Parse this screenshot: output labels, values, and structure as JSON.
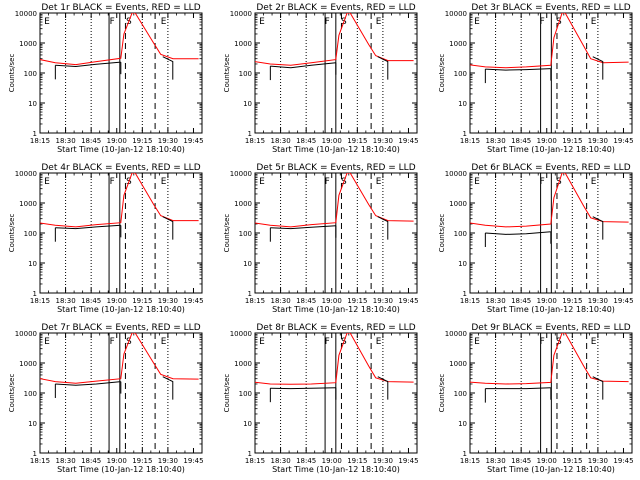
{
  "figure": {
    "background": "#ffffff",
    "axis_color": "#000000",
    "red_color": "#ff0000",
    "black_color": "#000000"
  },
  "chart_data": [
    {
      "type": "line",
      "title": "Det 1r BLACK = Events, RED = LLD",
      "xlabel": "Start Time (10-Jan-12 18:10:40)",
      "ylabel": "Counts/sec",
      "xlim": [
        18.25,
        19.8333
      ],
      "ylim": [
        1,
        10000
      ],
      "yscale": "log",
      "xticks": [
        "18:15",
        "18:30",
        "18:45",
        "19:00",
        "19:15",
        "19:30",
        "19:45"
      ],
      "yticks": [
        "1",
        "10",
        "100",
        "1000",
        "10000"
      ],
      "region_labels": [
        "E",
        "F",
        "S",
        "E"
      ],
      "series": [
        {
          "name": "RED = LLD",
          "color": "#ff0000",
          "x": [
            18.19,
            18.4,
            18.6,
            18.8,
            19.04,
            19.07,
            19.15,
            19.18,
            19.36,
            19.43,
            19.55,
            19.8
          ],
          "y": [
            310,
            220,
            190,
            240,
            310,
            2000,
            10000,
            10000,
            1000,
            420,
            300,
            300
          ]
        },
        {
          "name": "BLACK = Events",
          "color": "#000000",
          "x": [
            18.4,
            18.6,
            18.8,
            19.04
          ],
          "y": [
            180,
            165,
            195,
            230
          ]
        }
      ]
    },
    {
      "type": "line",
      "title": "Det 2r BLACK = Events, RED = LLD",
      "xlabel": "Start Time (10-Jan-12 18:10:40)",
      "ylabel": "Counts/sec",
      "xlim": [
        18.25,
        19.8333
      ],
      "ylim": [
        1,
        10000
      ],
      "yscale": "log",
      "xticks": [
        "18:15",
        "18:30",
        "18:45",
        "19:00",
        "19:15",
        "19:30",
        "19:45"
      ],
      "yticks": [
        "1",
        "10",
        "100",
        "1000",
        "10000"
      ],
      "region_labels": [
        "E",
        "F",
        "S",
        "E"
      ],
      "series": [
        {
          "name": "RED = LLD",
          "color": "#ff0000",
          "x": [
            18.19,
            18.4,
            18.6,
            18.8,
            19.04,
            19.07,
            19.15,
            19.18,
            19.36,
            19.43,
            19.55,
            19.8
          ],
          "y": [
            260,
            200,
            180,
            220,
            280,
            1800,
            10000,
            10000,
            900,
            380,
            260,
            260
          ]
        },
        {
          "name": "BLACK = Events",
          "color": "#000000",
          "x": [
            18.4,
            18.6,
            18.8,
            19.04
          ],
          "y": [
            170,
            150,
            180,
            220
          ]
        }
      ]
    },
    {
      "type": "line",
      "title": "Det 3r BLACK = Events, RED = LLD",
      "xlabel": "Start Time (10-Jan-12 18:10:40)",
      "ylabel": "Counts/sec",
      "xlim": [
        18.25,
        19.8333
      ],
      "ylim": [
        1,
        10000
      ],
      "yscale": "log",
      "xticks": [
        "18:15",
        "18:30",
        "18:45",
        "19:00",
        "19:15",
        "19:30",
        "19:45"
      ],
      "yticks": [
        "1",
        "10",
        "100",
        "1000",
        "10000"
      ],
      "region_labels": [
        "E",
        "F",
        "S",
        "E"
      ],
      "series": [
        {
          "name": "RED = LLD",
          "color": "#ff0000",
          "x": [
            18.19,
            18.4,
            18.6,
            18.8,
            19.04,
            19.07,
            19.15,
            19.18,
            19.36,
            19.43,
            19.55,
            19.8
          ],
          "y": [
            200,
            160,
            150,
            160,
            180,
            1500,
            10000,
            10000,
            800,
            300,
            220,
            230
          ]
        },
        {
          "name": "BLACK = Events",
          "color": "#000000",
          "x": [
            18.4,
            18.6,
            18.8,
            19.04
          ],
          "y": [
            135,
            125,
            130,
            140
          ]
        }
      ]
    },
    {
      "type": "line",
      "title": "Det 4r BLACK = Events, RED = LLD",
      "xlabel": "Start Time (10-Jan-12 18:10:40)",
      "ylabel": "Counts/sec",
      "xlim": [
        18.25,
        19.8333
      ],
      "ylim": [
        1,
        10000
      ],
      "yscale": "log",
      "xticks": [
        "18:15",
        "18:30",
        "18:45",
        "19:00",
        "19:15",
        "19:30",
        "19:45"
      ],
      "yticks": [
        "1",
        "10",
        "100",
        "1000",
        "10000"
      ],
      "region_labels": [
        "E",
        "F",
        "S",
        "E"
      ],
      "series": [
        {
          "name": "RED = LLD",
          "color": "#ff0000",
          "x": [
            18.19,
            18.4,
            18.6,
            18.8,
            19.04,
            19.07,
            19.15,
            19.18,
            19.36,
            19.43,
            19.55,
            19.8
          ],
          "y": [
            230,
            180,
            160,
            190,
            220,
            1800,
            10000,
            10000,
            900,
            380,
            260,
            260
          ]
        },
        {
          "name": "BLACK = Events",
          "color": "#000000",
          "x": [
            18.4,
            18.6,
            18.8,
            19.04
          ],
          "y": [
            150,
            140,
            160,
            180
          ]
        }
      ]
    },
    {
      "type": "line",
      "title": "Det 5r BLACK = Events, RED = LLD",
      "xlabel": "Start Time (10-Jan-12 18:10:40)",
      "ylabel": "Counts/sec",
      "xlim": [
        18.25,
        19.8333
      ],
      "ylim": [
        1,
        10000
      ],
      "yscale": "log",
      "xticks": [
        "18:15",
        "18:30",
        "18:45",
        "19:00",
        "19:15",
        "19:30",
        "19:45"
      ],
      "yticks": [
        "1",
        "10",
        "100",
        "1000",
        "10000"
      ],
      "region_labels": [
        "E",
        "F",
        "S",
        "E"
      ],
      "series": [
        {
          "name": "RED = LLD",
          "color": "#ff0000",
          "x": [
            18.19,
            18.4,
            18.6,
            18.8,
            19.04,
            19.07,
            19.15,
            19.18,
            19.36,
            19.43,
            19.55,
            19.8
          ],
          "y": [
            230,
            180,
            160,
            190,
            220,
            1800,
            10000,
            10000,
            900,
            380,
            260,
            250
          ]
        },
        {
          "name": "BLACK = Events",
          "color": "#000000",
          "x": [
            18.4,
            18.6,
            18.8,
            19.04
          ],
          "y": [
            150,
            140,
            155,
            175
          ]
        }
      ]
    },
    {
      "type": "line",
      "title": "Det 6r BLACK = Events, RED = LLD",
      "xlabel": "Start Time (10-Jan-12 18:10:40)",
      "ylabel": "Counts/sec",
      "xlim": [
        18.25,
        19.8333
      ],
      "ylim": [
        1,
        10000
      ],
      "yscale": "log",
      "xticks": [
        "18:15",
        "18:30",
        "18:45",
        "19:00",
        "19:15",
        "19:30",
        "19:45"
      ],
      "yticks": [
        "1",
        "10",
        "100",
        "1000",
        "10000"
      ],
      "region_labels": [
        "E",
        "F",
        "S",
        "E"
      ],
      "series": [
        {
          "name": "RED = LLD",
          "color": "#ff0000",
          "x": [
            18.19,
            18.4,
            18.6,
            18.8,
            19.04,
            19.07,
            19.15,
            19.18,
            19.36,
            19.43,
            19.55,
            19.8
          ],
          "y": [
            230,
            180,
            160,
            170,
            200,
            1500,
            10000,
            10000,
            800,
            320,
            240,
            230
          ]
        },
        {
          "name": "BLACK = Events",
          "color": "#000000",
          "x": [
            18.4,
            18.6,
            18.8,
            19.04
          ],
          "y": [
            100,
            90,
            95,
            110
          ]
        }
      ]
    },
    {
      "type": "line",
      "title": "Det 7r BLACK = Events, RED = LLD",
      "xlabel": "Start Time (10-Jan-12 18:10:40)",
      "ylabel": "Counts/sec",
      "xlim": [
        18.25,
        19.8333
      ],
      "ylim": [
        1,
        10000
      ],
      "yscale": "log",
      "xticks": [
        "18:15",
        "18:30",
        "18:45",
        "19:00",
        "19:15",
        "19:30",
        "19:45"
      ],
      "yticks": [
        "1",
        "10",
        "100",
        "1000",
        "10000"
      ],
      "region_labels": [
        "E",
        "F",
        "S",
        "E"
      ],
      "series": [
        {
          "name": "RED = LLD",
          "color": "#ff0000",
          "x": [
            18.19,
            18.4,
            18.6,
            18.8,
            19.04,
            19.07,
            19.15,
            19.18,
            19.36,
            19.43,
            19.55,
            19.8
          ],
          "y": [
            330,
            240,
            210,
            250,
            300,
            2000,
            10000,
            10000,
            1000,
            420,
            300,
            290
          ]
        },
        {
          "name": "BLACK = Events",
          "color": "#000000",
          "x": [
            18.4,
            18.6,
            18.8,
            19.04
          ],
          "y": [
            200,
            180,
            200,
            240
          ]
        }
      ]
    },
    {
      "type": "line",
      "title": "Det 8r BLACK = Events, RED = LLD",
      "xlabel": "Start Time (10-Jan-12 18:10:40)",
      "ylabel": "Counts/sec",
      "xlim": [
        18.25,
        19.8333
      ],
      "ylim": [
        1,
        10000
      ],
      "yscale": "log",
      "xticks": [
        "18:15",
        "18:30",
        "18:45",
        "19:00",
        "19:15",
        "19:30",
        "19:45"
      ],
      "yticks": [
        "1",
        "10",
        "100",
        "1000",
        "10000"
      ],
      "region_labels": [
        "E",
        "F",
        "S",
        "E"
      ],
      "series": [
        {
          "name": "RED = LLD",
          "color": "#ff0000",
          "x": [
            18.19,
            18.4,
            18.6,
            18.8,
            19.04,
            19.07,
            19.15,
            19.18,
            19.36,
            19.43,
            19.55,
            19.8
          ],
          "y": [
            240,
            200,
            195,
            200,
            220,
            1800,
            10000,
            10000,
            800,
            320,
            240,
            230
          ]
        },
        {
          "name": "BLACK = Events",
          "color": "#000000",
          "x": [
            18.4,
            18.6,
            18.8,
            19.04
          ],
          "y": [
            145,
            140,
            145,
            150
          ]
        }
      ]
    },
    {
      "type": "line",
      "title": "Det 9r BLACK = Events, RED = LLD",
      "xlabel": "Start Time (10-Jan-12 18:10:40)",
      "ylabel": "Counts/sec",
      "xlim": [
        18.25,
        19.8333
      ],
      "ylim": [
        1,
        10000
      ],
      "yscale": "log",
      "xticks": [
        "18:15",
        "18:30",
        "18:45",
        "19:00",
        "19:15",
        "19:30",
        "19:45"
      ],
      "yticks": [
        "1",
        "10",
        "100",
        "1000",
        "10000"
      ],
      "region_labels": [
        "E",
        "F",
        "S",
        "E"
      ],
      "series": [
        {
          "name": "RED = LLD",
          "color": "#ff0000",
          "x": [
            18.19,
            18.4,
            18.6,
            18.8,
            19.04,
            19.07,
            19.15,
            19.18,
            19.36,
            19.43,
            19.55,
            19.8
          ],
          "y": [
            240,
            210,
            200,
            205,
            225,
            1800,
            10000,
            10000,
            800,
            320,
            250,
            240
          ]
        },
        {
          "name": "BLACK = Events",
          "color": "#000000",
          "x": [
            18.4,
            18.6,
            18.8,
            19.04
          ],
          "y": [
            140,
            140,
            140,
            150
          ]
        }
      ]
    }
  ]
}
